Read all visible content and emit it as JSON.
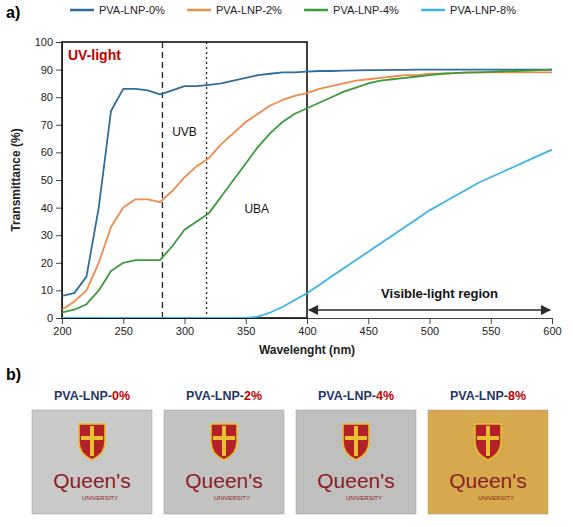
{
  "chart_data": {
    "type": "line",
    "panel": "a)",
    "x_label": "Wavelenght (nm)",
    "y_label": "Transmittance (%)",
    "xlim": [
      200,
      600
    ],
    "xticks": [
      200,
      250,
      300,
      350,
      400,
      450,
      500,
      550,
      600
    ],
    "ylim": [
      0,
      100
    ],
    "yticks": [
      0,
      10,
      20,
      30,
      40,
      50,
      60,
      70,
      80,
      90,
      100
    ],
    "grid": false,
    "legend": "top",
    "x": [
      200,
      210,
      220,
      230,
      240,
      250,
      260,
      270,
      280,
      290,
      300,
      310,
      320,
      330,
      340,
      350,
      360,
      370,
      380,
      390,
      400,
      410,
      420,
      430,
      440,
      450,
      460,
      470,
      480,
      490,
      500,
      510,
      520,
      530,
      540,
      550,
      560,
      570,
      580,
      590,
      600
    ],
    "series": [
      {
        "name": "PVA-LNP-0%",
        "color": "#2e6e9e",
        "values": [
          8,
          9,
          15,
          40,
          75,
          83,
          83,
          82.5,
          81,
          82.5,
          84,
          84,
          84.5,
          85,
          86,
          87,
          88,
          88.5,
          89,
          89,
          89.3,
          89.5,
          89.5,
          89.6,
          89.7,
          89.8,
          89.8,
          89.9,
          89.9,
          90,
          90,
          90,
          90,
          90,
          90,
          90,
          90,
          90,
          90,
          90,
          90
        ]
      },
      {
        "name": "PVA-LNP-2%",
        "color": "#f08a4b",
        "values": [
          3,
          6,
          10,
          20,
          33,
          40,
          43,
          43,
          42,
          46,
          51,
          55,
          58,
          63,
          67,
          71,
          74,
          77,
          79,
          80.5,
          81.5,
          83,
          84,
          85,
          86,
          86.5,
          87,
          87.5,
          88,
          88,
          88.5,
          88.5,
          88.7,
          88.8,
          89,
          89,
          89,
          89,
          89,
          89,
          89
        ]
      },
      {
        "name": "PVA-LNP-4%",
        "color": "#3a9a3c",
        "values": [
          2,
          3,
          5,
          10,
          17,
          20,
          21,
          21,
          21,
          26,
          32,
          35,
          38,
          44,
          50,
          56,
          62,
          67,
          71,
          74,
          76,
          78,
          80,
          82,
          83.5,
          85,
          86,
          86.5,
          87,
          87.5,
          88,
          88.5,
          88.7,
          89,
          89,
          89.2,
          89.4,
          89.5,
          89.6,
          89.8,
          90
        ]
      },
      {
        "name": "PVA-LNP-8%",
        "color": "#3cb2ea",
        "values": [
          0,
          0,
          0,
          0,
          0,
          0,
          0,
          0,
          0,
          0,
          0,
          0,
          0,
          0,
          0,
          0,
          0.5,
          2,
          4,
          6.5,
          9,
          12,
          15,
          18,
          21,
          24,
          27,
          30,
          33,
          36,
          39,
          41.5,
          44,
          46.5,
          49,
          51,
          53,
          55,
          57,
          59,
          61
        ]
      }
    ],
    "regions": [
      {
        "label": "UV-light",
        "x0": 200,
        "x1": 400
      },
      {
        "label": "UVB",
        "x0": 282,
        "x1": 318
      },
      {
        "label": "UBA",
        "x0": 318,
        "x1": 400
      },
      {
        "label": "Visible-light region",
        "x0": 400,
        "x1": 600
      }
    ]
  },
  "panel_b": {
    "panel": "b)",
    "emblem_text": [
      "Queen's",
      "UNIVERSITY"
    ],
    "images": [
      {
        "label": "PVA-LNP-0%",
        "color": "#c9c9c7"
      },
      {
        "label": "PVA-LNP-2%",
        "color": "#c2c2c0"
      },
      {
        "label": "PVA-LNP-4%",
        "color": "#bfbfbd"
      },
      {
        "label": "PVA-LNP-8%",
        "color": "#d6aa4c"
      }
    ]
  }
}
